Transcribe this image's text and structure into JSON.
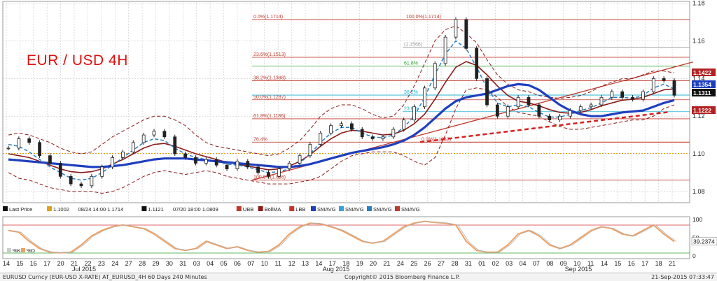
{
  "title": "EUR / USD 4H",
  "colors": {
    "price": "#222222",
    "bollinger_mid": "#8b1a1a",
    "bollinger_band": "#8b1a1a",
    "sma_blue": "#1f3fbf",
    "sma_dash_blue": "#2a7fc0",
    "support_dash": "#d62020",
    "trendline": "#c0392b",
    "fib_red": "#c0392b",
    "fib_green": "#2ca02c",
    "fib_cyan": "#1fb0d0",
    "stoch": "#f0a060"
  },
  "legend": {
    "items": [
      {
        "icon": "black-candle-icon",
        "label": "Last Price"
      },
      {
        "icon": "orange-square-icon",
        "label": "1.1002"
      },
      {
        "icon": "",
        "label": "08/24 14:00 1.1714"
      },
      {
        "icon": "plus-icon",
        "label": "1.1121"
      },
      {
        "icon": "",
        "label": "07/20 18:00 1.0809"
      },
      {
        "icon": "red-dash-icon",
        "label": "UBB"
      },
      {
        "icon": "darkred-square-icon",
        "label": "BollMA"
      },
      {
        "icon": "red-dash-icon",
        "label": "LBB"
      },
      {
        "icon": "blue-square-icon",
        "label": "SMAVG"
      },
      {
        "icon": "lightblue-square-icon",
        "label": "SMAVG"
      },
      {
        "icon": "blue-dash-icon",
        "label": "SMAVG"
      },
      {
        "icon": "red-dash-icon",
        "label": "SMAVG"
      }
    ]
  },
  "stoch_legend": [
    {
      "label": "%K"
    },
    {
      "label": "%D"
    }
  ],
  "chart_data": {
    "type": "line",
    "title": "EUR / USD 4H",
    "y_axis": {
      "ticks": [
        "1.18",
        "1.16",
        "1.14",
        "1.12",
        "1.10",
        "1.08"
      ],
      "range": [
        1.074,
        1.181
      ]
    },
    "price_tags": [
      {
        "value": "1.1422",
        "bg": "#b22222",
        "fg": "#ffffff"
      },
      {
        "value": "1.1354",
        "bg": "#1f3fbf",
        "fg": "#ffffff"
      },
      {
        "value": "1.1311",
        "bg": "#111111",
        "fg": "#ffffff"
      },
      {
        "value": "1.1222",
        "bg": "#b22222",
        "fg": "#ffffff"
      }
    ],
    "fib_levels": [
      {
        "label": "0.0%(1.1714)",
        "value": 1.1714
      },
      {
        "label": "100.0%(1.1714)",
        "value": 1.1714
      },
      {
        "label": "23.6%(1.1513)",
        "value": 1.1513
      },
      {
        "label": "38.2%(1.1388)",
        "value": 1.1388
      },
      {
        "label": "50.0%(1.1287)",
        "value": 1.1287
      },
      {
        "label": "61.8%(1.1186)",
        "value": 1.1186
      },
      {
        "label": "76.4%",
        "value": 1.1062
      },
      {
        "label": "0.0%(1.1062)",
        "value": 1.1062
      },
      {
        "label": "100.0%(1.086)",
        "value": 1.086
      },
      {
        "label": "(1.1566)",
        "value": 1.1566
      },
      {
        "label": "61.8%",
        "value": 1.1466
      },
      {
        "label": "38.2%",
        "value": 1.1312
      },
      {
        "label": "23.6%",
        "value": 1.1224
      }
    ],
    "price": [
      1.103,
      1.108,
      1.106,
      1.099,
      1.095,
      1.088,
      1.084,
      1.083,
      1.088,
      1.093,
      1.098,
      1.101,
      1.106,
      1.11,
      1.112,
      1.109,
      1.1,
      1.098,
      1.095,
      1.097,
      1.094,
      1.092,
      1.096,
      1.093,
      1.09,
      1.088,
      1.092,
      1.095,
      1.099,
      1.105,
      1.111,
      1.115,
      1.116,
      1.113,
      1.109,
      1.108,
      1.109,
      1.113,
      1.118,
      1.125,
      1.135,
      1.148,
      1.162,
      1.1714,
      1.156,
      1.14,
      1.126,
      1.12,
      1.125,
      1.13,
      1.126,
      1.12,
      1.118,
      1.12,
      1.123,
      1.125,
      1.126,
      1.13,
      1.133,
      1.13,
      1.129,
      1.133,
      1.14,
      1.139,
      1.1311
    ],
    "bb_mid": [
      1.1,
      1.099,
      1.098,
      1.096,
      1.094,
      1.092,
      1.0905,
      1.09,
      1.0905,
      1.092,
      1.0945,
      1.097,
      1.1,
      1.103,
      1.105,
      1.1055,
      1.104,
      1.102,
      1.1,
      1.0985,
      1.097,
      1.0955,
      1.0945,
      1.0935,
      1.0925,
      1.0915,
      1.092,
      1.0935,
      1.096,
      1.0995,
      1.104,
      1.108,
      1.111,
      1.1125,
      1.112,
      1.111,
      1.11,
      1.1105,
      1.1125,
      1.116,
      1.121,
      1.129,
      1.138,
      1.146,
      1.149,
      1.147,
      1.142,
      1.136,
      1.131,
      1.128,
      1.127,
      1.1255,
      1.1235,
      1.122,
      1.1215,
      1.122,
      1.1235,
      1.1255,
      1.127,
      1.1285,
      1.129,
      1.13,
      1.132,
      1.134,
      1.1345
    ],
    "bb_upper": [
      1.11,
      1.111,
      1.11,
      1.108,
      1.106,
      1.103,
      1.101,
      1.1,
      1.101,
      1.105,
      1.109,
      1.112,
      1.115,
      1.118,
      1.12,
      1.12,
      1.118,
      1.115,
      1.11,
      1.106,
      1.104,
      1.103,
      1.102,
      1.101,
      1.1,
      1.099,
      1.1,
      1.103,
      1.107,
      1.113,
      1.12,
      1.124,
      1.126,
      1.126,
      1.124,
      1.121,
      1.119,
      1.12,
      1.126,
      1.136,
      1.148,
      1.16,
      1.166,
      1.168,
      1.164,
      1.159,
      1.15,
      1.142,
      1.137,
      1.134,
      1.133,
      1.131,
      1.13,
      1.1295,
      1.13,
      1.131,
      1.133,
      1.136,
      1.138,
      1.14,
      1.14,
      1.142,
      1.144,
      1.144,
      1.143
    ],
    "bb_lower": [
      1.09,
      1.087,
      1.086,
      1.084,
      1.082,
      1.081,
      1.08,
      1.08,
      1.08,
      1.079,
      1.08,
      1.082,
      1.085,
      1.088,
      1.09,
      1.091,
      1.09,
      1.089,
      1.09,
      1.091,
      1.09,
      1.088,
      1.087,
      1.086,
      1.085,
      1.084,
      1.084,
      1.084,
      1.085,
      1.086,
      1.088,
      1.092,
      1.096,
      1.099,
      1.1,
      1.101,
      1.101,
      1.101,
      1.099,
      1.096,
      1.094,
      1.098,
      1.11,
      1.124,
      1.134,
      1.135,
      1.134,
      1.13,
      1.125,
      1.122,
      1.121,
      1.12,
      1.117,
      1.1145,
      1.113,
      1.113,
      1.114,
      1.115,
      1.116,
      1.117,
      1.118,
      1.118,
      1.12,
      1.124,
      1.126
    ],
    "sma_blue": [
      1.097,
      1.0965,
      1.096,
      1.0955,
      1.095,
      1.0945,
      1.094,
      1.0935,
      1.093,
      1.093,
      1.0935,
      1.094,
      1.095,
      1.096,
      1.097,
      1.0975,
      1.0975,
      1.0975,
      1.097,
      1.0965,
      1.096,
      1.0955,
      1.095,
      1.0945,
      1.094,
      1.0935,
      1.093,
      1.093,
      1.0935,
      1.0945,
      1.096,
      1.0975,
      1.099,
      1.1005,
      1.1015,
      1.1025,
      1.1035,
      1.105,
      1.107,
      1.11,
      1.114,
      1.119,
      1.124,
      1.128,
      1.13,
      1.131,
      1.132,
      1.134,
      1.136,
      1.137,
      1.1365,
      1.134,
      1.13,
      1.126,
      1.123,
      1.121,
      1.12,
      1.12,
      1.121,
      1.122,
      1.1225,
      1.123,
      1.125,
      1.127,
      1.1285
    ],
    "sma_dash": [
      1.105,
      1.104,
      1.101,
      1.097,
      1.093,
      1.09,
      1.087,
      1.086,
      1.087,
      1.09,
      1.094,
      1.098,
      1.102,
      1.106,
      1.108,
      1.107,
      1.103,
      1.1,
      1.098,
      1.097,
      1.096,
      1.0945,
      1.094,
      1.093,
      1.0915,
      1.09,
      1.0905,
      1.092,
      1.095,
      1.1,
      1.106,
      1.111,
      1.114,
      1.114,
      1.111,
      1.109,
      1.1085,
      1.11,
      1.114,
      1.12,
      1.13,
      1.142,
      1.153,
      1.16,
      1.156,
      1.146,
      1.135,
      1.127,
      1.125,
      1.126,
      1.125,
      1.122,
      1.1195,
      1.1195,
      1.121,
      1.123,
      1.1245,
      1.127,
      1.13,
      1.13,
      1.1295,
      1.131,
      1.135,
      1.137,
      1.1345
    ],
    "stoch": [
      70,
      65,
      40,
      20,
      10,
      8,
      10,
      30,
      55,
      70,
      80,
      85,
      80,
      75,
      60,
      40,
      20,
      15,
      20,
      40,
      30,
      20,
      25,
      15,
      10,
      12,
      30,
      60,
      80,
      90,
      88,
      80,
      70,
      55,
      40,
      35,
      40,
      60,
      80,
      90,
      95,
      92,
      90,
      85,
      40,
      15,
      10,
      10,
      30,
      60,
      70,
      55,
      30,
      20,
      30,
      50,
      70,
      80,
      75,
      60,
      55,
      70,
      85,
      60,
      39.2374
    ],
    "stoch_axis": {
      "ticks": [
        "100",
        "50",
        "0"
      ],
      "value_tag": "39.2374"
    },
    "x_labels": [
      "14",
      "15",
      "16",
      "17",
      "20",
      "21",
      "22",
      "23",
      "24",
      "27",
      "28",
      "29",
      "30",
      "31",
      "03",
      "04",
      "05",
      "06",
      "07",
      "10",
      "11",
      "12",
      "13",
      "14",
      "17",
      "18",
      "19",
      "20",
      "21",
      "24",
      "25",
      "26",
      "27",
      "28",
      "31",
      "01",
      "02",
      "03",
      "04",
      "07",
      "08",
      "09",
      "10",
      "11",
      "14",
      "15",
      "16",
      "17",
      "18",
      "21"
    ],
    "month_labels": [
      "Jul 2015",
      "Aug 2015",
      "Sep 2015"
    ]
  },
  "footer": {
    "left": "EURUSD Curncy (EUR-USD X-RATE) AT_EURUSD_4H 60 Days 240 Minutes",
    "center": "Copyright© 2015 Bloomberg Finance L.P.",
    "right": "21-Sep-2015 07:33:47"
  }
}
